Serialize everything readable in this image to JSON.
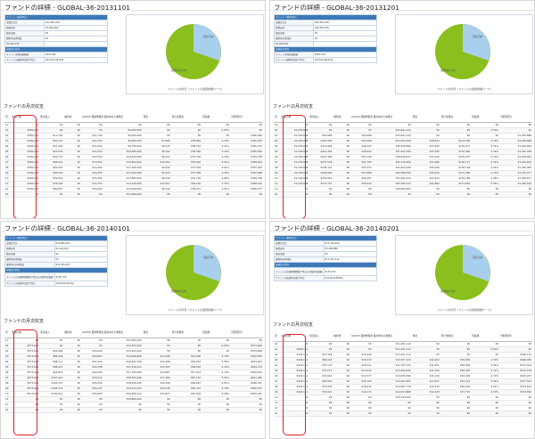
{
  "panels": [
    {
      "title": "ファンドの詳細 - GLOBAL-36-20131101",
      "info": [
        {
          "k": "ファンド（現在時点）",
          "v": "",
          "hdr": true
        },
        {
          "k": "出資金合計",
          "v": "¥12,960,000"
        },
        {
          "k": "目標元本",
          "v": "¥1,960,000"
        },
        {
          "k": "残高金額",
          "v": "¥0"
        },
        {
          "k": "運用中元本残高",
          "v": "¥0"
        },
        {
          "k": "¥0,000,000",
          "v": ""
        },
        {
          "k": "分配金の状況",
          "v": "",
          "hdr": true
        },
        {
          "k": "ファンド全体分配総額",
          "v": "¥437,663"
        },
        {
          "k": "ファンドの運用予定終了時点",
          "v": "2013年11月30日"
        }
      ],
      "legend": [
        "運用中の元本",
        "回収元本"
      ],
      "caption": "ファンドの状況（ファンドの運用総額ベース）",
      "section_title": "ファンドの月次収支",
      "columns": [
        "月",
        "出資元本",
        "利息収入",
        "繰替金",
        "AQUSH 貸倒準備金",
        "運用中の元本残高",
        "残高",
        "預り金残高",
        "回収額",
        "分配利回り"
      ],
      "rows": [
        [
          "12",
          "¥0",
          "¥0",
          "¥0",
          "¥0",
          "¥0",
          "¥0",
          "¥0",
          "¥0",
          "¥0"
        ],
        [
          "01",
          "¥360,000",
          "¥0",
          "¥0",
          "¥0",
          "¥9,000,000",
          "¥0",
          "¥0",
          "0.00%",
          "¥0"
        ],
        [
          "02",
          "¥360,000",
          "¥11,700",
          "¥0",
          "¥11,700",
          "¥9,000,000",
          "¥0",
          "¥0",
          "¥0",
          "¥360,000"
        ],
        [
          "03",
          "¥360,000",
          "¥50,197",
          "¥0",
          "¥12,150",
          "¥9,360,000",
          "¥7,666",
          "¥30,861",
          "4.70%",
          "¥395,361"
        ],
        [
          "04",
          "¥360,000",
          "¥57,442",
          "¥0",
          "¥11,600",
          "¥9,720,000",
          "¥9,075",
          "¥39,767",
          "5.14%",
          "¥395,767"
        ],
        [
          "05",
          "¥360,000",
          "¥57,634",
          "¥0",
          "¥11,050",
          "¥10,080,000",
          "¥9,102",
          "¥35,562",
          "5.10%",
          "¥395,562"
        ],
        [
          "06",
          "¥360,000",
          "¥55,775",
          "¥0",
          "¥13,500",
          "¥10,440,000",
          "¥8,547",
          "¥33,728",
          "4.70%",
          "¥393,728"
        ],
        [
          "07",
          "¥360,000",
          "¥63,901",
          "¥0",
          "¥13,500",
          "¥10,800,000",
          "¥10,054",
          "¥39,502",
          "5.34%",
          "¥399,502"
        ],
        [
          "08",
          "¥360,000",
          "¥61,945",
          "¥0",
          "¥14,400",
          "¥11,160,000",
          "¥9,542",
          "¥37,003",
          "4.91%",
          "¥397,003"
        ],
        [
          "09",
          "¥360,000",
          "¥64,581",
          "¥0",
          "¥14,450",
          "¥11,520,000",
          "¥9,413",
          "¥37,089",
          "4.76%",
          "¥397,089"
        ],
        [
          "10",
          "¥360,000",
          "¥59,016",
          "¥0",
          "¥25,300",
          "¥11,880,000",
          "¥8,018",
          "¥34,799",
          "4.28%",
          "¥394,799"
        ],
        [
          "11",
          "¥360,000",
          "¥76,162",
          "¥0",
          "¥15,750",
          "¥12,240,000",
          "¥10,207",
          "¥48,162",
          "5.75%",
          "¥408,162"
        ],
        [
          "12",
          "¥360,000",
          "¥60,857",
          "¥0",
          "¥15,600",
          "¥12,600,000",
          "¥8,740",
          "¥36,237",
          "4.91%",
          "¥396,237"
        ],
        [
          "01",
          "¥0",
          "¥0",
          "¥0",
          "¥0",
          "¥12,960,000",
          "¥0",
          "¥0",
          "¥0",
          "¥0"
        ]
      ]
    },
    {
      "title": "ファンドの詳細 - GLOBAL-36-20131201",
      "info": [
        {
          "k": "ファンド（現在時点）",
          "v": "",
          "hdr": true
        },
        {
          "k": "出資金合計",
          "v": "¥46,560,000"
        },
        {
          "k": "目標元本",
          "v": "¥46,560,000"
        },
        {
          "k": "残高金額",
          "v": "¥0"
        },
        {
          "k": "運用中元本残高",
          "v": "¥0"
        },
        {
          "k": "¥0,000,000",
          "v": ""
        },
        {
          "k": "分配金の状況",
          "v": "",
          "hdr": true
        },
        {
          "k": "ファンド全体分配総額",
          "v": "¥583,512"
        },
        {
          "k": "ファンドの運用予定終了時点",
          "v": "2013年12月31日"
        }
      ],
      "legend": [
        "運用中の元本",
        "回収元本"
      ],
      "caption": "ファンドの状況（ファンドの運用総額ベース）",
      "section_title": "ファンドの月次収支",
      "columns": [
        "月",
        "出資元本",
        "利息収入",
        "繰替金",
        "AQUSH 貸倒準備金",
        "運用中の元本残高",
        "残高",
        "預り金残高",
        "回収額",
        "分配利回り"
      ],
      "rows": [
        [
          "12",
          "¥0",
          "¥0",
          "¥0",
          "¥0",
          "¥0",
          "¥0",
          "¥0",
          "¥0",
          "¥0"
        ],
        [
          "01",
          "¥1,293,888",
          "¥0",
          "¥0",
          "¥0",
          "¥33,641,120",
          "¥0",
          "¥0",
          "0.00%",
          "¥0"
        ],
        [
          "02",
          "¥1,293,888",
          "¥43,668",
          "¥0",
          "¥43,668",
          "¥33,641,120",
          "¥0",
          "¥0",
          "¥0",
          "¥1,293,888"
        ],
        [
          "03",
          "¥1,293,888",
          "¥187,099",
          "¥0",
          "¥45,289",
          "¥34,935,008",
          "¥28,813",
          "¥113,000",
          "4.70%",
          "¥1,406,888"
        ],
        [
          "04",
          "¥1,293,888",
          "¥213,826",
          "¥0",
          "¥46,003",
          "¥36,228,896",
          "¥33,940",
          "¥132,977",
          "5.34%",
          "¥1,426,865"
        ],
        [
          "05",
          "¥1,293,888",
          "¥214,364",
          "¥0",
          "¥48,922",
          "¥37,522,784",
          "¥33,780",
          "¥132,060",
          "5.16%",
          "¥1,425,948"
        ],
        [
          "06",
          "¥1,293,888",
          "¥207,346",
          "¥0",
          "¥50,136",
          "¥38,816,672",
          "¥31,932",
          "¥125,075",
          "4.70%",
          "¥1,418,963"
        ],
        [
          "07",
          "¥1,293,888",
          "¥237,536",
          "¥0",
          "¥51,793",
          "¥40,110,560",
          "¥37,466",
          "¥146,717",
          "5.34%",
          "¥1,440,605"
        ],
        [
          "08",
          "¥1,293,888",
          "¥228,114",
          "¥0",
          "¥53,372",
          "¥41,404,448",
          "¥35,946",
          "¥136,194",
          "4.91%",
          "¥1,430,082"
        ],
        [
          "09",
          "¥1,293,888",
          "¥228,696",
          "¥0",
          "¥54,966",
          "¥42,698,336",
          "¥35,010",
          "¥137,260",
          "4.70%",
          "¥1,431,077"
        ],
        [
          "10",
          "¥1,293,888",
          "¥220,610",
          "¥0",
          "¥56,487",
          "¥43,992,224",
          "¥34,414",
          "¥134,789",
          "4.48%",
          "¥1,428,677"
        ],
        [
          "11",
          "¥1,293,888",
          "¥273,737",
          "¥0",
          "¥58,022",
          "¥45,286,112",
          "¥41,860",
          "¥171,652",
          "5.55%",
          "¥1,465,540"
        ],
        [
          "12",
          "¥0",
          "¥0",
          "¥0",
          "¥0",
          "¥46,560,000",
          "¥0",
          "¥0",
          "¥0",
          "¥0"
        ],
        [
          "01",
          "¥0",
          "¥0",
          "¥0",
          "¥0",
          "¥0",
          "¥0",
          "¥0",
          "¥0",
          "¥0"
        ]
      ]
    },
    {
      "title": "ファンドの詳細 - GLOBAL-36-20140101",
      "info": [
        {
          "k": "ファンド（現在時点）",
          "v": "",
          "hdr": true
        },
        {
          "k": "出資金合計",
          "v": "¥20,880,000"
        },
        {
          "k": "目標元本",
          "v": "¥5,164,901"
        },
        {
          "k": "残高金額",
          "v": "¥0"
        },
        {
          "k": "運用中元本残高",
          "v": "¥0"
        },
        {
          "k": "運用中の元本残高",
          "v": "¥15,405,000"
        },
        {
          "k": "分配金の状況",
          "v": "",
          "hdr": true
        },
        {
          "k": "ファンドの全運用期間終了時点の分配予定総額",
          "v": "¥106,728"
        },
        {
          "k": "ファンドの出資予定終了時点",
          "v": "2014年01月31日"
        }
      ],
      "legend": [
        "運用中の元本",
        "回収元本"
      ],
      "caption": "ファンドの状況（ファンドの運用総額ベース）",
      "section_title": "ファンドの月次収支",
      "columns": [
        "月",
        "出資元本",
        "利息収入",
        "繰替金",
        "AQUSH 貸倒準備金",
        "運用中の元本残高",
        "残高",
        "預り金残高",
        "回収額",
        "分配利回り"
      ],
      "rows": [
        [
          "12",
          "¥0",
          "¥0",
          "¥0",
          "¥0",
          "¥15,405,000",
          "¥0",
          "¥0",
          "¥0",
          "¥0"
        ],
        [
          "01",
          "¥573,600",
          "¥0",
          "¥0",
          "¥0",
          "¥15,405,000",
          "¥0",
          "¥0",
          "0.00%",
          "¥573,600"
        ],
        [
          "02",
          "¥573,600",
          "¥20,069",
          "¥0",
          "¥20,069",
          "¥15,405,000",
          "¥0",
          "¥0",
          "¥0",
          "¥573,600"
        ],
        [
          "03",
          "¥573,600",
          "¥85,949",
          "¥0",
          "¥20,803",
          "¥16,068,806",
          "¥13,190",
          "¥51,808",
          "4.70%",
          "¥625,876"
        ],
        [
          "04",
          "¥573,600",
          "¥98,111",
          "¥0",
          "¥21,520",
          "¥16,642,706",
          "¥15,568",
          "¥61,023",
          "5.34%",
          "¥634,623"
        ],
        [
          "05",
          "¥573,600",
          "¥98,213",
          "¥0",
          "¥22,238",
          "¥17,216,672",
          "¥15,353",
          "¥60,552",
          "5.12%",
          "¥634,470"
        ],
        [
          "06",
          "¥573,600",
          "¥94,843",
          "¥0",
          "¥22,958",
          "¥17,790,560",
          "¥14,867",
          "¥57,014",
          "4.70%",
          "¥630,614"
        ],
        [
          "07",
          "¥573,600",
          "¥107,921",
          "¥0",
          "¥23,672",
          "¥18,364,446",
          "¥17,060",
          "¥67,161",
          "5.34%",
          "¥641,090"
        ],
        [
          "08",
          "¥573,600",
          "¥103,347",
          "¥0",
          "¥24,300",
          "¥18,938,336",
          "¥16,196",
          "¥62,667",
          "4.91%",
          "¥636,597"
        ],
        [
          "09",
          "¥573,600",
          "¥103,712",
          "¥0",
          "¥25,107",
          "¥19,512,224",
          "¥16,016",
          "¥62,797",
          "4.70%",
          "¥636,397"
        ],
        [
          "10",
          "¥573,600",
          "¥100,610",
          "¥0",
          "¥25,825",
          "¥20,086,112",
          "¥15,627",
          "¥61,904",
          "4.48%",
          "¥635,452"
        ],
        [
          "11",
          "¥0",
          "¥0",
          "¥0",
          "¥0",
          "¥20,880,000",
          "¥0",
          "¥0",
          "¥0",
          "¥0"
        ],
        [
          "12",
          "¥0",
          "¥0",
          "¥0",
          "¥0",
          "¥0",
          "¥0",
          "¥0",
          "¥0",
          "¥0"
        ],
        [
          "01",
          "¥0",
          "¥0",
          "¥0",
          "¥0",
          "¥0",
          "¥0",
          "¥0",
          "¥0",
          "¥0"
        ]
      ]
    },
    {
      "title": "ファンドの詳細 - GLOBAL-36-20140201",
      "info": [
        {
          "k": "ファンド（現在時点）",
          "v": "",
          "hdr": true
        },
        {
          "k": "出資金合計",
          "v": "¥15,340,000"
        },
        {
          "k": "目標元本",
          "v": "¥3,408,888"
        },
        {
          "k": "残高金額",
          "v": "¥0"
        },
        {
          "k": "運用中元本残高",
          "v": "¥11,931,112"
        },
        {
          "k": "分配金の状況",
          "v": "",
          "hdr": true
        },
        {
          "k": "ファンドの全運用期間終了時点の分配予定総額",
          "v": "¥143,043"
        },
        {
          "k": "ファンドの出資予定終了時点",
          "v": "2014年02月28日"
        }
      ],
      "legend": [
        "運用中の元本",
        "回収元本"
      ],
      "caption": "ファンドの状況（ファンドの運用総額ベース）",
      "section_title": "ファンドの月次収支",
      "columns": [
        "月",
        "出資元本",
        "利息収入",
        "繰替金",
        "AQUSH 貸倒準備金",
        "運用中の元本残高",
        "残高",
        "預り金残高",
        "回収額",
        "分配利回り"
      ],
      "rows": [
        [
          "12",
          "¥0",
          "¥0",
          "¥0",
          "¥0",
          "¥11,931,112",
          "¥0",
          "¥0",
          "¥0",
          "¥0"
        ],
        [
          "01",
          "¥426,111",
          "¥0",
          "¥0",
          "¥0",
          "¥11,931,112",
          "¥0",
          "¥0",
          "0.00%",
          "¥0"
        ],
        [
          "02",
          "¥426,111",
          "¥15,440",
          "¥0",
          "¥15,440",
          "¥11,931,112",
          "¥0",
          "¥0",
          "¥0",
          "¥426,111"
        ],
        [
          "03",
          "¥426,111",
          "¥66,018",
          "¥0",
          "¥15,979",
          "¥12,357,223",
          "¥10,203",
          "¥39,836",
          "4.70%",
          "¥466,056"
        ],
        [
          "04",
          "¥426,111",
          "¥75,175",
          "¥0",
          "¥16,511",
          "¥12,783,334",
          "¥11,871",
          "¥46,893",
          "5.34%",
          "¥473,004"
        ],
        [
          "05",
          "¥426,111",
          "¥75,277",
          "¥0",
          "¥17,044",
          "¥13,209,445",
          "¥11,764",
          "¥46,467",
          "5.12%",
          "¥472,578"
        ],
        [
          "06",
          "¥426,111",
          "¥72,619",
          "¥0",
          "¥17,577",
          "¥13,635,556",
          "¥11,116",
          "¥43,926",
          "4.70%",
          "¥470,037"
        ],
        [
          "07",
          "¥426,111",
          "¥82,560",
          "¥0",
          "¥18,109",
          "¥14,061,667",
          "¥13,037",
          "¥51,414",
          "5.34%",
          "¥477,525"
        ],
        [
          "08",
          "¥426,111",
          "¥79,478",
          "¥0",
          "¥18,642",
          "¥14,487,778",
          "¥12,334",
          "¥48,502",
          "4.91%",
          "¥474,613"
        ],
        [
          "09",
          "¥426,111",
          "¥79,021",
          "¥0",
          "¥19,174",
          "¥14,913,889",
          "¥12,128",
          "¥47,719",
          "4.70%",
          "¥473,830"
        ],
        [
          "10",
          "¥0",
          "¥0",
          "¥0",
          "¥0",
          "¥15,340,000",
          "¥0",
          "¥0",
          "¥0",
          "¥0"
        ],
        [
          "11",
          "¥0",
          "¥0",
          "¥0",
          "¥0",
          "¥0",
          "¥0",
          "¥0",
          "¥0",
          "¥0"
        ],
        [
          "12",
          "¥0",
          "¥0",
          "¥0",
          "¥0",
          "¥0",
          "¥0",
          "¥0",
          "¥0",
          "¥0"
        ],
        [
          "01",
          "¥0",
          "¥0",
          "¥0",
          "¥0",
          "¥0",
          "¥0",
          "¥0",
          "¥0",
          "¥0"
        ]
      ]
    }
  ],
  "colors": {
    "accent": "#3d79b8",
    "pie_main": "#8bbf1e",
    "pie_slice": "#a9cfee",
    "highlight": "#d9232b"
  }
}
